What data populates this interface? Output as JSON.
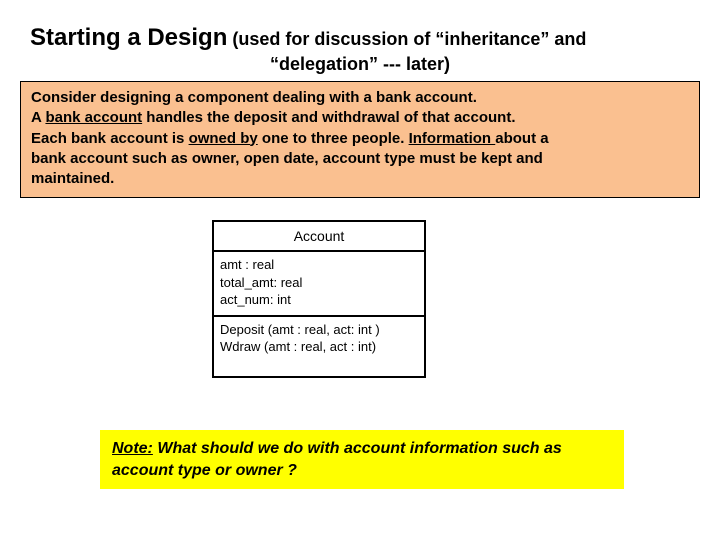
{
  "title": {
    "main": "Starting a Design",
    "suffix": " (used for discussion of “inheritance” and",
    "line2": "“delegation” --- later)"
  },
  "description": {
    "line1": "Consider designing a component dealing with a bank account.",
    "line2_pre": "A ",
    "line2_ul": "bank account",
    "line2_post": " handles the deposit and withdrawal of that account.",
    "line3_pre": "Each bank account is ",
    "line3_ul1": "owned by",
    "line3_mid": " one to three people. ",
    "line3_ul2": "Information ",
    "line3_post": "about a",
    "line4": "bank account such as owner, open date, account type must be kept and",
    "line5": "maintained."
  },
  "uml": {
    "class_name": "Account",
    "attr1": "amt : real",
    "attr2": "total_amt: real",
    "attr3": "act_num: int",
    "op1": "Deposit (amt : real, act: int )",
    "op2": "Wdraw (amt : real, act : int)"
  },
  "note": {
    "label": "Note:",
    "text": " What should we do with account information such as account type or owner ?"
  },
  "colors": {
    "desc_bg": "#fac090",
    "note_bg": "#ffff00",
    "border": "#000000",
    "text": "#000000",
    "page_bg": "#ffffff"
  }
}
